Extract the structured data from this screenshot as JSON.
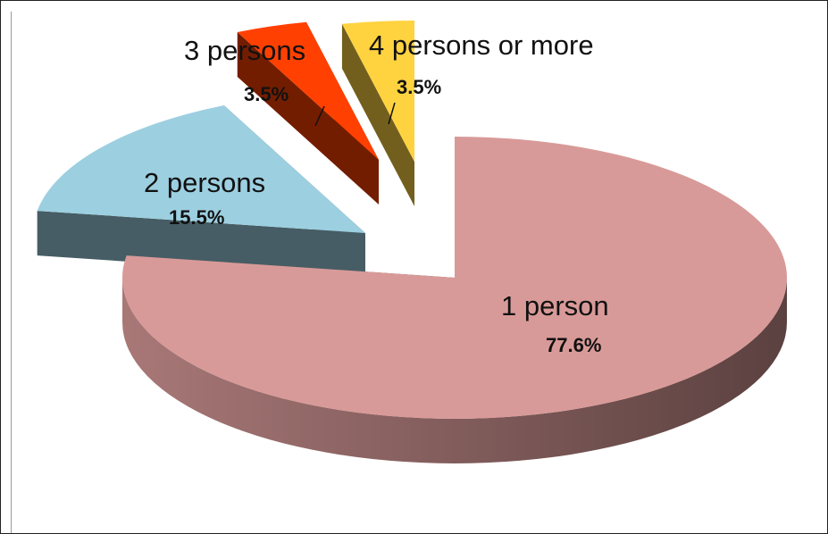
{
  "chart_data": {
    "type": "pie",
    "style": "3d-exploded",
    "categories": [
      "1 person",
      "2 persons",
      "3 persons",
      "4 persons or more"
    ],
    "values": [
      77.6,
      15.5,
      3.5,
      3.5
    ],
    "value_labels": [
      "77.6%",
      "15.5%",
      "3.5%",
      "3.5%"
    ],
    "colors": [
      "#d89a98",
      "#9ccfe0",
      "#ff4000",
      "#ffd340"
    ],
    "title": "",
    "legend": "none"
  }
}
